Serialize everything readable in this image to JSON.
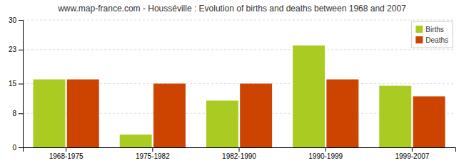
{
  "chart_data": {
    "type": "bar",
    "title": "www.map-france.com - Housséville : Evolution of births and deaths between 1968 and 2007",
    "categories": [
      "1968-1975",
      "1975-1982",
      "1982-1990",
      "1990-1999",
      "1999-2007"
    ],
    "series": [
      {
        "name": "Births",
        "color": "#aacc22",
        "values": [
          16,
          3,
          11,
          24,
          14.5
        ]
      },
      {
        "name": "Deaths",
        "color": "#cc4400",
        "values": [
          16,
          15,
          15,
          16,
          12
        ]
      }
    ],
    "ylim": [
      0,
      30
    ],
    "yticks": [
      0,
      8,
      15,
      23,
      30
    ],
    "grid": true,
    "legend": "upper-right"
  }
}
